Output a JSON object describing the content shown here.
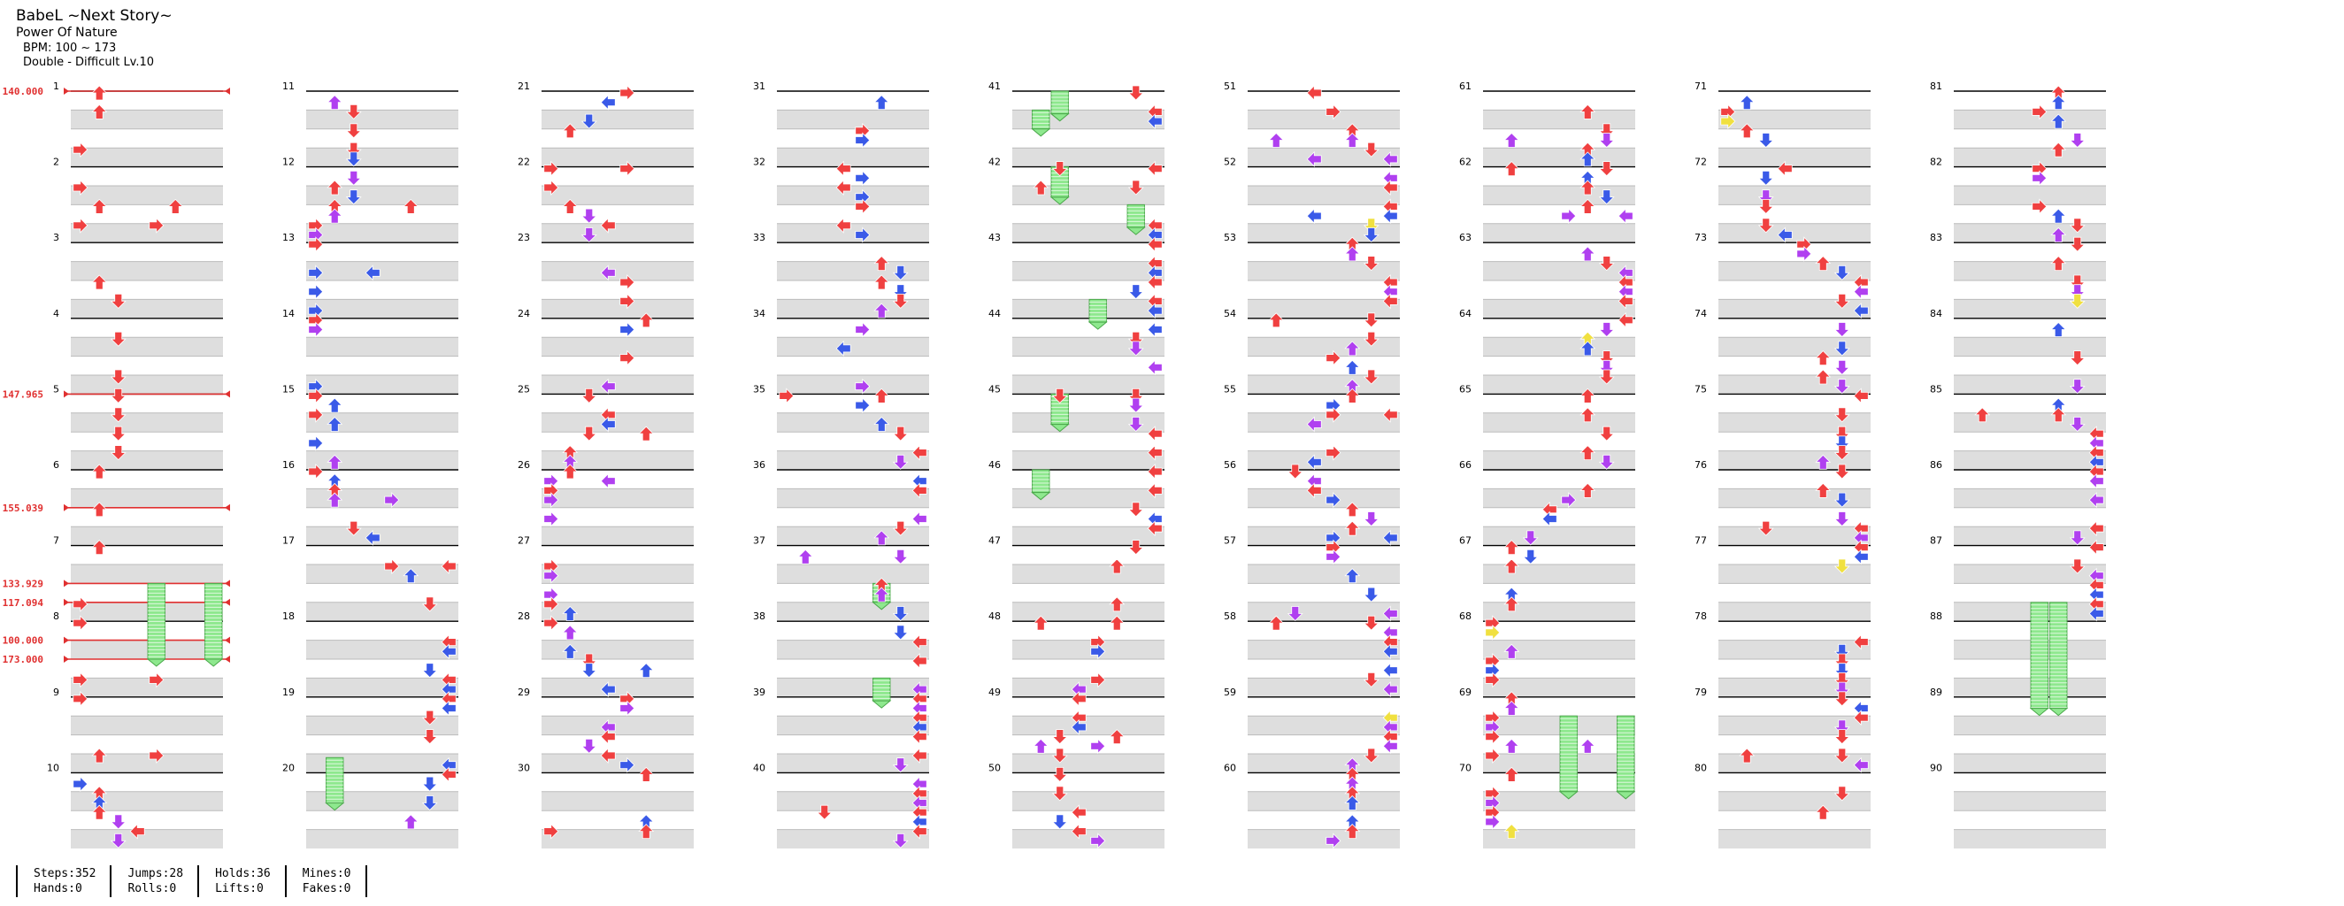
{
  "song": {
    "title": "BabeL ~Next Story~",
    "artist": "Power Of Nature",
    "bpm_label": "BPM: 100 ~ 173",
    "chart_label": "Double - Difficult Lv.10"
  },
  "colors": {
    "quarter": "#f04040",
    "eighth": "#3a5ae8",
    "sixteenth": "#b040f0",
    "fake": "#f0e040",
    "hold": "#8ee88e",
    "bpm_line": "#e03030",
    "band": "#dedede"
  },
  "chart_data": {
    "type": "table",
    "title": "BabeL ~Next Story~ — Double Difficult",
    "measure_numbers": [
      "1",
      "2",
      "3",
      "4",
      "5",
      "6",
      "7",
      "8",
      "9",
      "10",
      "11",
      "12",
      "13",
      "14",
      "15",
      "16",
      "17",
      "18",
      "19",
      "20",
      "21",
      "22",
      "23",
      "24",
      "25",
      "26",
      "27",
      "28",
      "29",
      "30",
      "31",
      "32",
      "33",
      "34",
      "35",
      "36",
      "37",
      "38",
      "39",
      "40",
      "41",
      "42",
      "43",
      "44",
      "45",
      "46",
      "47",
      "48",
      "49",
      "50",
      "51",
      "52",
      "53",
      "54",
      "55",
      "56",
      "57",
      "58",
      "59",
      "60",
      "61",
      "62",
      "63",
      "64",
      "65",
      "66",
      "67",
      "68",
      "69",
      "70",
      "71",
      "72",
      "73",
      "74",
      "75",
      "76",
      "77",
      "78",
      "79",
      "80",
      "81",
      "82",
      "83",
      "84",
      "85",
      "86",
      "87",
      "88",
      "89",
      "90"
    ],
    "bpm_changes": [
      {
        "measure": 1.0,
        "label": "140.000"
      },
      {
        "measure": 5.0,
        "label": "147.965"
      },
      {
        "measure": 6.5,
        "label": "155.039"
      },
      {
        "measure": 7.5,
        "label": "133.929"
      },
      {
        "measure": 7.75,
        "label": "117.094"
      },
      {
        "measure": 8.25,
        "label": "100.000"
      },
      {
        "measure": 8.5,
        "label": "173.000"
      }
    ],
    "holds": [
      {
        "measure": 7.5,
        "lane": 4,
        "length": 1.0
      },
      {
        "measure": 7.5,
        "lane": 7,
        "length": 1.0
      },
      {
        "measure": 19.8,
        "lane": 1,
        "length": 0.6
      },
      {
        "measure": 37.5,
        "lane": 5,
        "length": 0.25
      },
      {
        "measure": 38.75,
        "lane": 5,
        "length": 0.3
      },
      {
        "measure": 41.0,
        "lane": 2,
        "length": 0.3
      },
      {
        "measure": 41.25,
        "lane": 1,
        "length": 0.25
      },
      {
        "measure": 42.0,
        "lane": 2,
        "length": 0.4
      },
      {
        "measure": 42.5,
        "lane": 6,
        "length": 0.3
      },
      {
        "measure": 43.75,
        "lane": 4,
        "length": 0.3
      },
      {
        "measure": 45.0,
        "lane": 2,
        "length": 0.4
      },
      {
        "measure": 46.0,
        "lane": 1,
        "length": 0.3
      },
      {
        "measure": 69.25,
        "lane": 4,
        "length": 1.0
      },
      {
        "measure": 69.25,
        "lane": 7,
        "length": 1.0
      },
      {
        "measure": 87.75,
        "lane": 4,
        "length": 1.4
      },
      {
        "measure": 87.75,
        "lane": 5,
        "length": 1.4
      }
    ]
  },
  "stats": {
    "steps": "Steps:352",
    "hands": "Hands:0",
    "jumps": "Jumps:28",
    "rolls": "Rolls:0",
    "holds": "Holds:36",
    "lifts": "Lifts:0",
    "mines": "Mines:0",
    "fakes": "Fakes:0"
  }
}
